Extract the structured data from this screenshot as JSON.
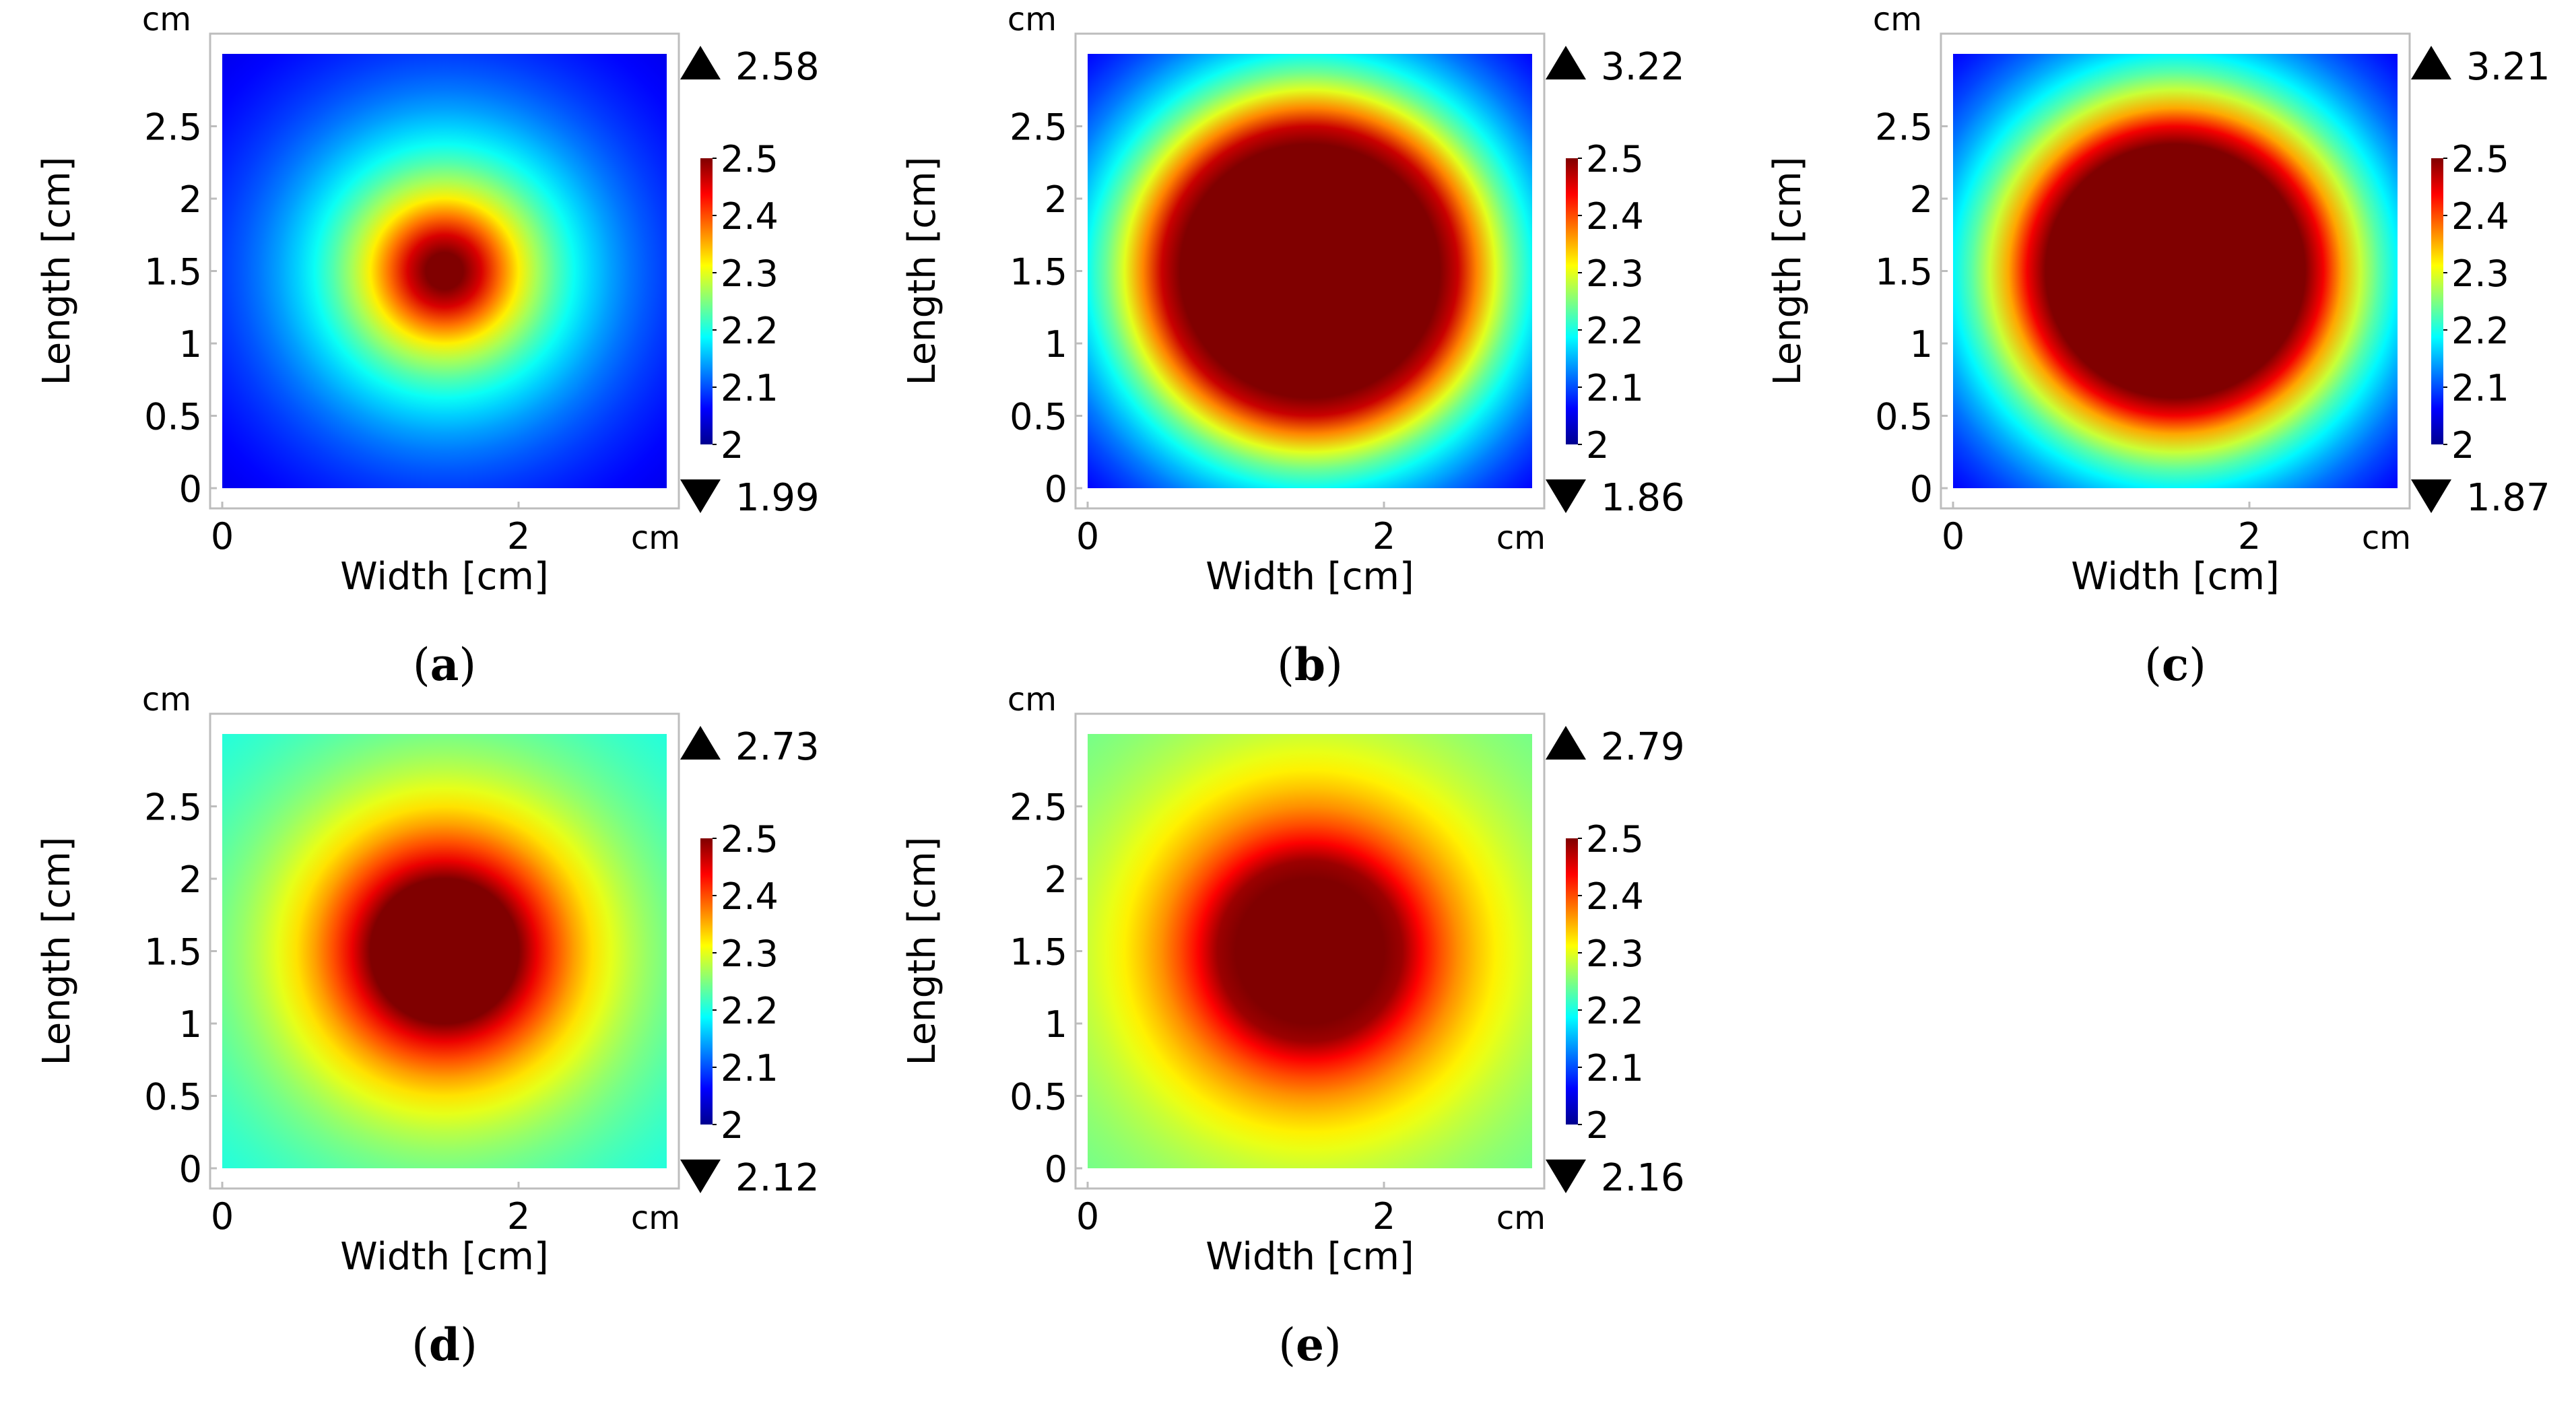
{
  "figure": {
    "common": {
      "x_unit": "cm",
      "y_unit": "cm",
      "xlabel": "Width [cm]",
      "ylabel": "Length [cm]",
      "x_ticks": [
        0,
        2
      ],
      "y_ticks": [
        0,
        0.5,
        1,
        1.5,
        2,
        2.5
      ],
      "x_tick_labels": [
        "0",
        "2"
      ],
      "y_tick_labels": [
        "0",
        "0.5",
        "1",
        "1.5",
        "2",
        "2.5"
      ],
      "xlim": [
        0,
        3
      ],
      "ylim": [
        0,
        3
      ],
      "colorbar": {
        "range": [
          2,
          2.5
        ],
        "ticks": [
          "2.5",
          "2.4",
          "2.3",
          "2.2",
          "2.1",
          "2"
        ],
        "colormap": "jet"
      }
    }
  },
  "chart_data": [
    {
      "type": "heatmap",
      "panel_label": "a",
      "title": "",
      "xlabel": "Width [cm]",
      "ylabel": "Length [cm]",
      "max_label": "2.58",
      "min_label": "1.99",
      "max_value": 2.58,
      "min_value": 1.99,
      "center": [
        1.5,
        1.5
      ],
      "edge_value": 2.03,
      "hotspot_radius_cm": 0.06
    },
    {
      "type": "heatmap",
      "panel_label": "b",
      "title": "",
      "xlabel": "Width [cm]",
      "ylabel": "Length [cm]",
      "max_label": "3.22",
      "min_label": "1.86",
      "max_value": 3.22,
      "min_value": 1.86,
      "center": [
        1.5,
        1.5
      ],
      "edge_value": 2.0,
      "hotspot_radius_cm": 0.32
    },
    {
      "type": "heatmap",
      "panel_label": "c",
      "title": "",
      "xlabel": "Width [cm]",
      "ylabel": "Length [cm]",
      "max_label": "3.21",
      "min_label": "1.87",
      "max_value": 3.21,
      "min_value": 1.87,
      "center": [
        1.5,
        1.5
      ],
      "edge_value": 2.0,
      "hotspot_radius_cm": 0.3
    },
    {
      "type": "heatmap",
      "panel_label": "d",
      "title": "",
      "xlabel": "Width [cm]",
      "ylabel": "Length [cm]",
      "max_label": "2.73",
      "min_label": "2.12",
      "max_value": 2.73,
      "min_value": 2.12,
      "center": [
        1.5,
        1.5
      ],
      "edge_value": 2.18,
      "hotspot_radius_cm": 0.12
    },
    {
      "type": "heatmap",
      "panel_label": "e",
      "title": "",
      "xlabel": "Width [cm]",
      "ylabel": "Length [cm]",
      "max_label": "2.79",
      "min_label": "2.16",
      "max_value": 2.79,
      "min_value": 2.16,
      "center": [
        1.5,
        1.5
      ],
      "edge_value": 2.22,
      "hotspot_radius_cm": 0.1
    }
  ]
}
